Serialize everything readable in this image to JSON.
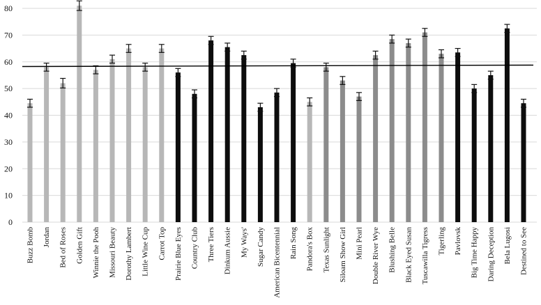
{
  "chart_data": {
    "type": "bar",
    "title": "",
    "xlabel": "",
    "ylabel": "",
    "ylim": [
      0,
      80
    ],
    "yticks": [
      "0",
      "10",
      "20",
      "30",
      "40",
      "50",
      "60",
      "70",
      "80"
    ],
    "grid": "horizontal",
    "legend": "none",
    "reference_line": 58.5,
    "colors": {
      "light_gray": "#b7b7b7",
      "dark_gray": "#8c8c8c",
      "black": "#0d0d0d",
      "grid": "#d9d9d9",
      "reference_line": "#000000"
    },
    "categories": [
      "Buzz Bomb",
      "Jordan",
      "Bed of Roses",
      "Golden Gift",
      "Winnie the Pooh",
      "Missouri Beauty",
      "Dorothy Lambert",
      "Little Wine Cup",
      "Carrot Top",
      "Prairie Blue Eyes",
      "Country Club",
      "Three Tiers",
      "Dinkum Aussie",
      "My Ways'",
      "Sugar Candy",
      "American Bicentennial",
      "Rain Song",
      "Pandora's Box",
      "Texas Sunlight",
      "Siloam Show Girl",
      "Mini Pearl",
      "Double River Wye",
      "Blushing Belle",
      "Black Eyed Susan",
      "Tuscawilla Tigress",
      "Tigerling",
      "Pavlovsk",
      "Big Time Happy",
      "Daring Deception",
      "Bela Lugosi",
      "Destined to See"
    ],
    "values": [
      44.5,
      58.0,
      52.0,
      81.0,
      57.0,
      61.0,
      65.0,
      58.0,
      65.0,
      56.0,
      48.0,
      68.0,
      65.5,
      62.5,
      43.0,
      48.5,
      59.5,
      45.0,
      58.0,
      53.0,
      47.0,
      62.5,
      68.5,
      67.0,
      71.0,
      63.0,
      63.5,
      50.0,
      55.0,
      72.5,
      44.5
    ],
    "errors": [
      1.5,
      1.5,
      1.8,
      1.8,
      1.5,
      1.5,
      1.5,
      1.5,
      1.5,
      1.5,
      1.5,
      1.5,
      1.5,
      1.5,
      1.5,
      1.5,
      1.5,
      1.5,
      1.5,
      1.5,
      1.5,
      1.5,
      1.5,
      1.5,
      1.5,
      1.5,
      1.5,
      1.5,
      1.5,
      1.5,
      1.5
    ],
    "bar_colors": [
      "#b7b7b7",
      "#b7b7b7",
      "#b7b7b7",
      "#b7b7b7",
      "#b7b7b7",
      "#b7b7b7",
      "#b7b7b7",
      "#b7b7b7",
      "#b7b7b7",
      "#0d0d0d",
      "#0d0d0d",
      "#0d0d0d",
      "#0d0d0d",
      "#0d0d0d",
      "#0d0d0d",
      "#0d0d0d",
      "#0d0d0d",
      "#b7b7b7",
      "#8c8c8c",
      "#8c8c8c",
      "#8c8c8c",
      "#8c8c8c",
      "#8c8c8c",
      "#8c8c8c",
      "#8c8c8c",
      "#8c8c8c",
      "#0d0d0d",
      "#0d0d0d",
      "#0d0d0d",
      "#0d0d0d",
      "#0d0d0d"
    ]
  }
}
